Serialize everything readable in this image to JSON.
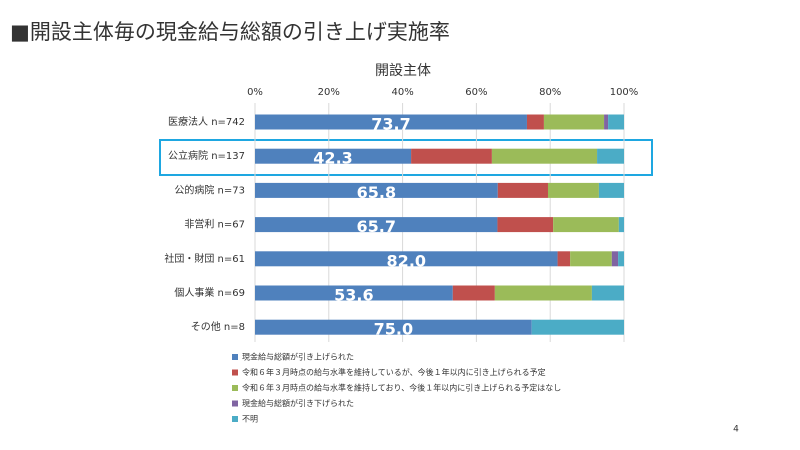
{
  "page_title": "■開設主体毎の現金給与総額の引き上げ実施率",
  "page_number": "4",
  "chart_data": {
    "type": "stacked-barh",
    "title": "開設主体",
    "categories": [
      "医療法人 n=742",
      "公立病院 n=137",
      "公的病院 n=73",
      "非営利 n=67",
      "社団・財団 n=61",
      "個人事業 n=69",
      "その他 n=8"
    ],
    "xlim": [
      0,
      100
    ],
    "xticks": [
      {
        "value": 0,
        "label": "0%"
      },
      {
        "value": 20,
        "label": "20%"
      },
      {
        "value": 40,
        "label": "40%"
      },
      {
        "value": 60,
        "label": "60%"
      },
      {
        "value": 80,
        "label": "80%"
      },
      {
        "value": 100,
        "label": "100%"
      }
    ],
    "grid": true,
    "series": [
      {
        "name": "現金給与総額が引き上げられた",
        "color": "#4f81bd",
        "values": [
          73.7,
          42.3,
          65.8,
          65.7,
          82.0,
          53.6,
          75.0
        ],
        "value_labels": [
          "73.7",
          "42.3",
          "65.8",
          "65.7",
          "82.0",
          "53.6",
          "75.0"
        ]
      },
      {
        "name": "令和６年３月時点の給与水準を維持しているが、今後１年以内に引き上げられる予定",
        "color": "#c0504d",
        "values": [
          4.6,
          21.9,
          13.6,
          15.1,
          3.4,
          11.4,
          0
        ]
      },
      {
        "name": "令和６年３月時点の給与水準を維持しており、今後１年以内に引き上げられる予定はなし",
        "color": "#9bbb59",
        "values": [
          16.3,
          28.5,
          13.8,
          17.8,
          11.3,
          26.3,
          0
        ]
      },
      {
        "name": "現金給与総額が引き下げられた",
        "color": "#8064a2",
        "values": [
          1.1,
          0,
          0,
          0,
          1.7,
          0,
          0
        ]
      },
      {
        "name": "不明",
        "color": "#4bacc6",
        "values": [
          4.3,
          7.3,
          6.8,
          1.4,
          1.6,
          8.7,
          25.0
        ]
      }
    ]
  }
}
